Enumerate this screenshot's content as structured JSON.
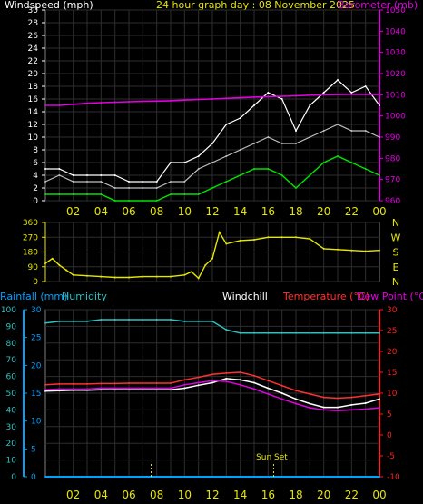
{
  "header": {
    "windspeed_label": "Windspeed (mph)",
    "graph_title": "24 hour graph day : 08 November 2025",
    "barometer_label": "Barometer (mb)"
  },
  "colors": {
    "background": "#000000",
    "panel_border": "#808080",
    "grid": "#2e2e2e",
    "windspeed_max": "#ffffff",
    "windspeed_avg": "#ffffff",
    "windspeed_low": "#00e000",
    "barometer": "#e000e0",
    "winddir": "#e6e600",
    "rainfall": "#00a0ff",
    "humidity": "#30c0c0",
    "windchill": "#ffffff",
    "temperature": "#ff3030",
    "dewpoint": "#e000e0",
    "x_labels": "#e6e600",
    "red_axis": "#ff2020",
    "cyan_axis": "#00c8ff"
  },
  "legend3": {
    "rainfall": "Rainfall (mm)",
    "humidity": "Humidity",
    "windchill": "Windchill",
    "temperature": "Temperature (°C)",
    "dewpoint": "Dew Point (°C)"
  },
  "annotations": {
    "sunset": "Sun Set"
  },
  "x_tick_labels": [
    "02",
    "04",
    "06",
    "08",
    "10",
    "12",
    "14",
    "16",
    "18",
    "20",
    "22",
    "00"
  ],
  "chart_data": [
    {
      "type": "line",
      "title": "24 hour graph day : 08 November 2025",
      "x_hours": [
        0,
        1,
        2,
        3,
        4,
        5,
        6,
        7,
        8,
        9,
        10,
        11,
        12,
        13,
        14,
        15,
        16,
        17,
        18,
        19,
        20,
        21,
        22,
        23,
        24
      ],
      "left_axis": {
        "label": "Windspeed (mph)",
        "ylim": [
          0,
          30
        ],
        "ticks": [
          0,
          2,
          4,
          6,
          8,
          10,
          12,
          14,
          16,
          18,
          20,
          22,
          24,
          26,
          28,
          30
        ]
      },
      "right_axis": {
        "label": "Barometer (mb)",
        "ylim": [
          960,
          1050
        ],
        "ticks": [
          960,
          970,
          980,
          990,
          1000,
          1010,
          1020,
          1030,
          1040,
          1050
        ]
      },
      "series": [
        {
          "name": "Windspeed",
          "axis": "left",
          "values": [
            3,
            4,
            3,
            3,
            3,
            2,
            2,
            2,
            2,
            3,
            3,
            5,
            6,
            7,
            8,
            9,
            10,
            9,
            9,
            10,
            11,
            12,
            11,
            11,
            10
          ]
        },
        {
          "name": "Gust",
          "axis": "left",
          "values": [
            5,
            5,
            4,
            4,
            4,
            4,
            3,
            3,
            3,
            6,
            6,
            7,
            9,
            12,
            13,
            15,
            17,
            16,
            11,
            15,
            17,
            19,
            17,
            18,
            15
          ]
        },
        {
          "name": "Low",
          "axis": "left",
          "values": [
            1,
            1,
            1,
            1,
            1,
            0,
            0,
            0,
            0,
            1,
            1,
            1,
            2,
            3,
            4,
            5,
            5,
            4,
            2,
            4,
            6,
            7,
            6,
            5,
            4
          ]
        },
        {
          "name": "Barometer",
          "axis": "right",
          "values": [
            1005,
            1005,
            1005.5,
            1006,
            1006.3,
            1006.5,
            1006.7,
            1006.9,
            1007,
            1007.2,
            1007.5,
            1007.8,
            1008,
            1008.3,
            1008.6,
            1008.9,
            1009.1,
            1009.3,
            1009.5,
            1009.8,
            1010,
            1010.1,
            1010.2,
            1010.2,
            1010.1
          ]
        }
      ]
    },
    {
      "type": "line",
      "title": "",
      "left_axis": {
        "ticks": [
          0,
          90,
          180,
          270,
          360
        ],
        "ylim": [
          0,
          360
        ]
      },
      "right_axis": {
        "ticks": [
          "N",
          "W",
          "S",
          "E",
          "N"
        ]
      },
      "x_hours": [
        0,
        0.5,
        1,
        1.5,
        2,
        3,
        4,
        5,
        6,
        7,
        8,
        9,
        10,
        10.5,
        11,
        11.5,
        12,
        12.5,
        13,
        14,
        15,
        16,
        17,
        18,
        19,
        20,
        21,
        22,
        23,
        24
      ],
      "series": [
        {
          "name": "Wind direction",
          "values": [
            110,
            140,
            100,
            70,
            40,
            35,
            30,
            25,
            25,
            30,
            30,
            30,
            40,
            60,
            20,
            100,
            140,
            300,
            230,
            250,
            255,
            270,
            270,
            270,
            260,
            200,
            195,
            190,
            185,
            190
          ]
        }
      ]
    },
    {
      "type": "line",
      "title": "",
      "x_hours": [
        0,
        1,
        2,
        3,
        4,
        5,
        6,
        7,
        8,
        9,
        10,
        11,
        12,
        13,
        14,
        15,
        16,
        17,
        18,
        19,
        20,
        21,
        22,
        23,
        24
      ],
      "left_axis": {
        "label": "Rainfall (mm)",
        "ylim": [
          0,
          30
        ],
        "ticks": [
          0,
          5,
          10,
          15,
          20,
          25,
          30
        ]
      },
      "humidity_axis": {
        "label": "Humidity",
        "ylim": [
          0,
          100
        ],
        "ticks": [
          0,
          10,
          20,
          30,
          40,
          50,
          60,
          70,
          80,
          90,
          100
        ]
      },
      "right_axis": {
        "label": "Temperature (°C)",
        "ylim": [
          -10,
          30
        ],
        "ticks": [
          -10,
          -5,
          0,
          5,
          10,
          15,
          20,
          25,
          30
        ]
      },
      "series": [
        {
          "name": "Rainfall",
          "axis": "left",
          "values": [
            0,
            0,
            0,
            0,
            0,
            0,
            0,
            0,
            0,
            0,
            0,
            0,
            0,
            0,
            0,
            0,
            0,
            0,
            0,
            0,
            0,
            0,
            0,
            0,
            0
          ]
        },
        {
          "name": "Humidity",
          "axis": "humidity",
          "values": [
            92,
            93,
            93,
            93,
            94,
            94,
            94,
            94,
            94,
            94,
            93,
            93,
            93,
            88,
            86,
            86,
            86,
            86,
            86,
            86,
            86,
            86,
            86,
            86,
            86
          ]
        },
        {
          "name": "Windchill",
          "axis": "right",
          "values": [
            10.5,
            10.6,
            10.7,
            10.7,
            10.8,
            10.8,
            10.8,
            10.8,
            10.8,
            10.8,
            11.2,
            11.9,
            12.5,
            13.5,
            13.2,
            12.5,
            11.2,
            10,
            8.6,
            7.5,
            6.6,
            6.6,
            7.2,
            7.6,
            8.6
          ]
        },
        {
          "name": "Temperature",
          "axis": "right",
          "values": [
            12,
            12.2,
            12.2,
            12.2,
            12.3,
            12.3,
            12.4,
            12.4,
            12.4,
            12.4,
            13.2,
            13.8,
            14.5,
            14.8,
            15,
            14.2,
            13,
            11.8,
            10.6,
            9.8,
            9,
            8.8,
            9,
            9.4,
            9.8
          ]
        },
        {
          "name": "Dew Point",
          "axis": "right",
          "values": [
            10.8,
            11,
            11,
            11,
            11.2,
            11.2,
            11.2,
            11.2,
            11.2,
            11.2,
            12,
            12.5,
            13,
            12.8,
            12,
            11,
            9.8,
            8.6,
            7.5,
            6.5,
            6,
            5.8,
            6,
            6.2,
            6.5
          ]
        }
      ],
      "vertical_markers": [
        {
          "hour": 7.6,
          "label": ""
        },
        {
          "hour": 16.4,
          "label": "Sun Set"
        }
      ]
    }
  ]
}
